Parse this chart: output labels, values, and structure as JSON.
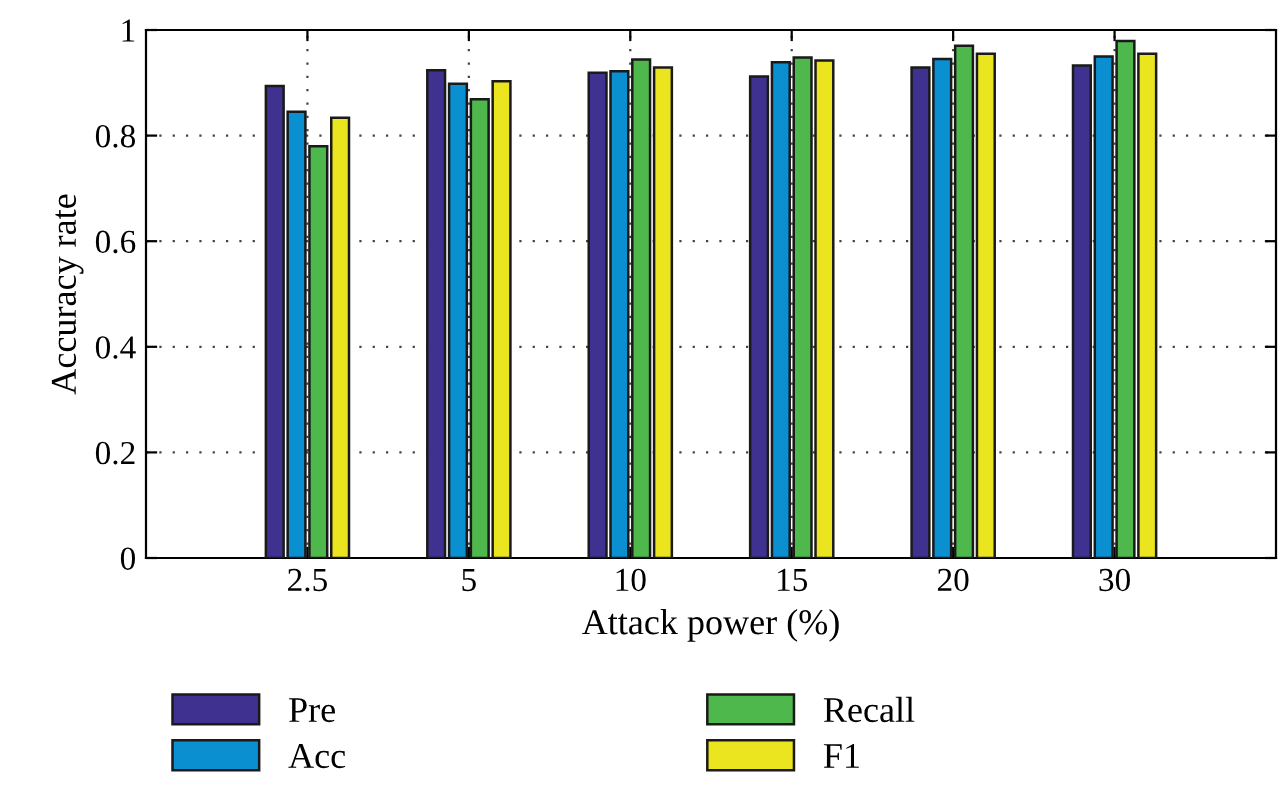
{
  "chart_data": {
    "type": "bar",
    "xlabel": "Attack power (%)",
    "ylabel": "Accuracy rate",
    "categories": [
      "2.5",
      "5",
      "10",
      "15",
      "20",
      "30"
    ],
    "series": [
      {
        "name": "Pre",
        "color": "#3f3190",
        "values": [
          0.894,
          0.924,
          0.919,
          0.912,
          0.929,
          0.933
        ]
      },
      {
        "name": "Acc",
        "color": "#0a8fd0",
        "values": [
          0.845,
          0.898,
          0.922,
          0.939,
          0.945,
          0.95
        ]
      },
      {
        "name": "Recall",
        "color": "#4fb84d",
        "values": [
          0.78,
          0.869,
          0.944,
          0.948,
          0.97,
          0.979
        ]
      },
      {
        "name": "F1",
        "color": "#ebe51f",
        "values": [
          0.834,
          0.903,
          0.929,
          0.942,
          0.955,
          0.955
        ]
      }
    ],
    "ylim": [
      0,
      1
    ],
    "yticks": [
      0,
      0.2,
      0.4,
      0.6,
      0.8,
      1
    ],
    "grid": true,
    "legend": "bottom"
  }
}
